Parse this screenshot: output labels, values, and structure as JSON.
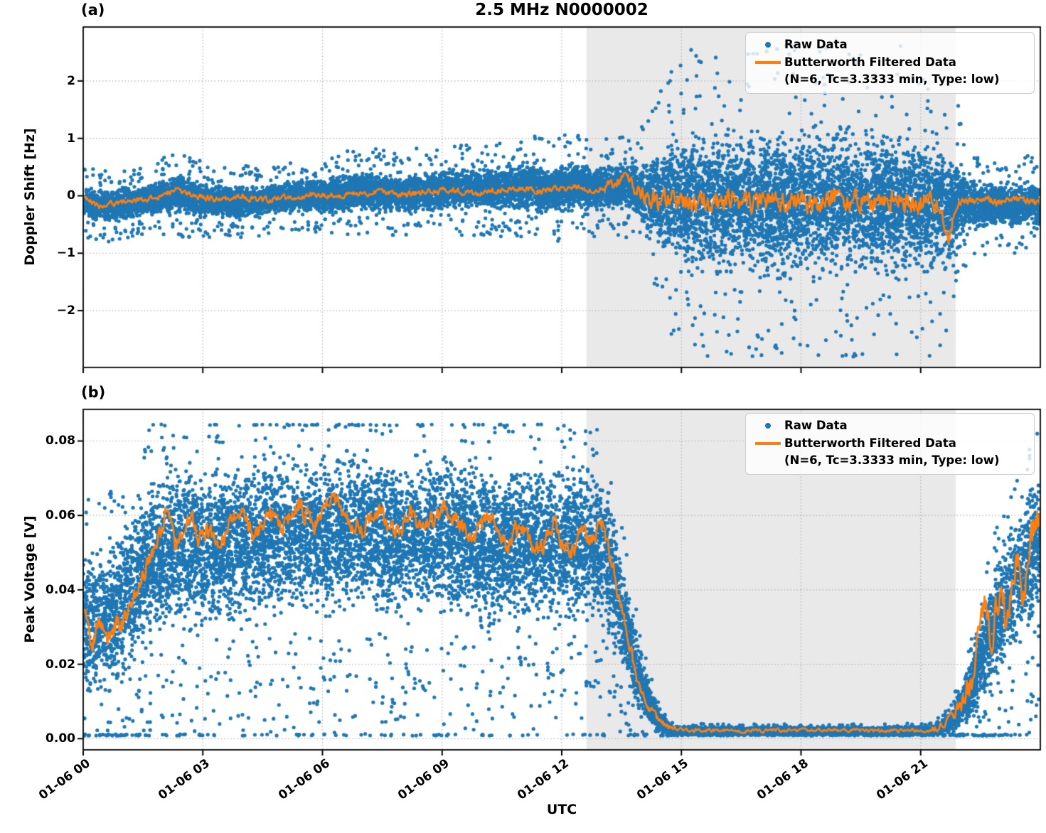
{
  "figure": {
    "title": "2.5 MHz N0000002",
    "xlabel": "UTC",
    "colors": {
      "raw": "#1f77b4",
      "filtered": "#ff7f0e",
      "night_shade": "#e9e9e9",
      "grid": "#b0b0b0",
      "spine": "#000000"
    },
    "legend": {
      "raw_label": "Raw Data",
      "filtered_label": "Butterworth Filtered Data",
      "filtered_sublabel": "(N=6, Tc=3.3333 min, Type: low)"
    }
  },
  "chart_data": [
    {
      "id": "a",
      "type": "scatter",
      "panel_label": "(a)",
      "ylabel": "Doppler Shift [Hz]",
      "ylim": [
        -2.99,
        2.94
      ],
      "ytick_values": [
        2,
        1,
        0,
        -1,
        -2
      ],
      "ytick_labels": [
        "2",
        "1",
        "0",
        "−1",
        "−2"
      ],
      "x_hours_range": [
        0,
        24
      ],
      "xtick_hours": [
        0,
        3,
        6,
        9,
        12,
        15,
        18,
        21
      ],
      "night_span_hours": [
        12.62,
        21.88
      ],
      "legend_entries": [
        "Raw Data",
        "Butterworth Filtered Data (N=6, Tc=3.3333 min, Type: low)"
      ],
      "raw_envelope": [
        [
          0,
          -0.12,
          0.32
        ],
        [
          0.5,
          -0.18,
          0.35
        ],
        [
          1,
          -0.15,
          0.33
        ],
        [
          1.5,
          -0.1,
          0.32
        ],
        [
          2,
          -0.02,
          0.38
        ],
        [
          2.4,
          0.03,
          0.42
        ],
        [
          2.8,
          -0.05,
          0.38
        ],
        [
          3.2,
          -0.1,
          0.35
        ],
        [
          3.6,
          -0.1,
          0.34
        ],
        [
          4,
          -0.1,
          0.35
        ],
        [
          4.4,
          -0.12,
          0.33
        ],
        [
          4.8,
          -0.05,
          0.3
        ],
        [
          5.2,
          -0.02,
          0.33
        ],
        [
          5.6,
          0,
          0.35
        ],
        [
          6,
          0,
          0.36
        ],
        [
          6.4,
          0.02,
          0.38
        ],
        [
          6.8,
          0.08,
          0.4
        ],
        [
          7.2,
          0.1,
          0.42
        ],
        [
          7.6,
          0.05,
          0.4
        ],
        [
          8,
          0.02,
          0.38
        ],
        [
          8.4,
          0.06,
          0.42
        ],
        [
          8.8,
          0.1,
          0.4
        ],
        [
          9.2,
          0.12,
          0.42
        ],
        [
          9.6,
          0.1,
          0.44
        ],
        [
          10,
          0.1,
          0.42
        ],
        [
          10.4,
          0.12,
          0.46
        ],
        [
          10.8,
          0.15,
          0.48
        ],
        [
          11.2,
          0.18,
          0.5
        ],
        [
          11.6,
          0.12,
          0.48
        ],
        [
          12,
          0.15,
          0.52
        ],
        [
          12.4,
          0.18,
          0.48
        ],
        [
          12.8,
          0.12,
          0.45
        ],
        [
          13.2,
          0.15,
          0.48
        ],
        [
          13.6,
          0.2,
          0.52
        ],
        [
          13.9,
          0.1,
          0.6
        ],
        [
          14.2,
          -0.05,
          0.85
        ],
        [
          14.6,
          -0.1,
          1.15
        ],
        [
          15,
          -0.12,
          1.4
        ],
        [
          15.5,
          -0.12,
          1.5
        ],
        [
          16,
          -0.15,
          1.55
        ],
        [
          16.5,
          -0.1,
          1.5
        ],
        [
          17,
          -0.15,
          1.55
        ],
        [
          17.5,
          -0.12,
          1.5
        ],
        [
          18,
          -0.12,
          1.55
        ],
        [
          18.5,
          -0.15,
          1.5
        ],
        [
          19,
          -0.12,
          1.55
        ],
        [
          19.5,
          -0.15,
          1.5
        ],
        [
          20,
          -0.12,
          1.5
        ],
        [
          20.5,
          -0.15,
          1.55
        ],
        [
          21,
          -0.12,
          1.5
        ],
        [
          21.4,
          -0.15,
          1.45
        ],
        [
          21.8,
          -0.25,
          1.2
        ],
        [
          22.05,
          -0.1,
          0.75
        ],
        [
          22.3,
          -0.15,
          0.55
        ],
        [
          22.6,
          -0.2,
          0.5
        ],
        [
          23,
          -0.12,
          0.42
        ],
        [
          23.4,
          -0.18,
          0.45
        ],
        [
          23.7,
          -0.15,
          0.48
        ],
        [
          24,
          -0.25,
          0.5
        ]
      ],
      "filtered_points": [
        [
          0,
          -0.05
        ],
        [
          0.4,
          -0.18
        ],
        [
          0.8,
          -0.12
        ],
        [
          1.2,
          -0.08
        ],
        [
          1.6,
          -0.06
        ],
        [
          2,
          0
        ],
        [
          2.3,
          0.1
        ],
        [
          2.7,
          0.03
        ],
        [
          3,
          -0.03
        ],
        [
          3.5,
          -0.06
        ],
        [
          4,
          -0.03
        ],
        [
          4.5,
          -0.08
        ],
        [
          5,
          -0.03
        ],
        [
          5.5,
          0
        ],
        [
          6,
          0.02
        ],
        [
          6.5,
          0
        ],
        [
          7,
          0.04
        ],
        [
          7.5,
          0.09
        ],
        [
          8,
          0.02
        ],
        [
          8.5,
          0.05
        ],
        [
          9,
          0.1
        ],
        [
          9.5,
          0.07
        ],
        [
          10,
          0.05
        ],
        [
          10.5,
          0.1
        ],
        [
          11,
          0.12
        ],
        [
          11.5,
          0.09
        ],
        [
          12,
          0.12
        ],
        [
          12.4,
          0.16
        ],
        [
          12.7,
          0.1
        ],
        [
          13,
          0.13
        ],
        [
          13.3,
          0.22
        ],
        [
          13.55,
          0.35
        ],
        [
          13.75,
          0.18
        ],
        [
          14,
          0.02
        ],
        [
          14.4,
          -0.08
        ],
        [
          14.8,
          -0.02
        ],
        [
          15.2,
          -0.1
        ],
        [
          15.6,
          -0.05
        ],
        [
          16,
          -0.12
        ],
        [
          16.4,
          -0.05
        ],
        [
          16.8,
          -0.15
        ],
        [
          17.2,
          -0.05
        ],
        [
          17.6,
          -0.12
        ],
        [
          18,
          -0.06
        ],
        [
          18.4,
          -0.14
        ],
        [
          18.8,
          -0.05
        ],
        [
          19.2,
          -0.12
        ],
        [
          19.6,
          -0.06
        ],
        [
          20,
          -0.12
        ],
        [
          20.4,
          -0.05
        ],
        [
          20.8,
          -0.14
        ],
        [
          21.2,
          -0.1
        ],
        [
          21.5,
          -0.25
        ],
        [
          21.7,
          -0.75
        ],
        [
          21.85,
          -0.3
        ],
        [
          22,
          -0.05
        ],
        [
          22.3,
          -0.1
        ],
        [
          22.7,
          -0.07
        ],
        [
          23,
          -0.12
        ],
        [
          23.4,
          -0.08
        ],
        [
          23.7,
          -0.12
        ],
        [
          24,
          -0.12
        ]
      ],
      "filtered_noise_amp": [
        [
          0,
          0.055
        ],
        [
          12.8,
          0.055
        ],
        [
          13.3,
          0.09
        ],
        [
          13.8,
          0.12
        ],
        [
          14.3,
          0.2
        ],
        [
          21.5,
          0.2
        ],
        [
          21.9,
          0.14
        ],
        [
          22.2,
          0.07
        ],
        [
          24,
          0.07
        ]
      ]
    },
    {
      "id": "b",
      "type": "scatter",
      "panel_label": "(b)",
      "ylabel": "Peak Voltage [V]",
      "ylim": [
        -0.003,
        0.0885
      ],
      "ytick_values": [
        0.08,
        0.06,
        0.04,
        0.02,
        0.0
      ],
      "ytick_labels": [
        "0.08",
        "0.06",
        "0.04",
        "0.02",
        "0.00"
      ],
      "x_hours_range": [
        0,
        24
      ],
      "xtick_hours": [
        0,
        3,
        6,
        9,
        12,
        15,
        18,
        21
      ],
      "xtick_labels": [
        "01-06 00",
        "01-06 03",
        "01-06 06",
        "01-06 09",
        "01-06 12",
        "01-06 15",
        "01-06 18",
        "01-06 21"
      ],
      "night_span_hours": [
        12.62,
        21.88
      ],
      "legend_entries": [
        "Raw Data",
        "Butterworth Filtered Data (N=6, Tc=3.3333 min, Type: low)"
      ],
      "raw_envelope": [
        [
          0,
          0.03,
          0.024
        ],
        [
          0.5,
          0.032,
          0.025
        ],
        [
          1,
          0.036,
          0.026
        ],
        [
          1.5,
          0.045,
          0.027
        ],
        [
          2,
          0.05,
          0.027
        ],
        [
          2.5,
          0.052,
          0.026
        ],
        [
          3,
          0.05,
          0.026
        ],
        [
          4,
          0.053,
          0.026
        ],
        [
          5,
          0.055,
          0.026
        ],
        [
          6,
          0.055,
          0.026
        ],
        [
          7,
          0.056,
          0.026
        ],
        [
          8,
          0.054,
          0.026
        ],
        [
          9,
          0.055,
          0.026
        ],
        [
          10,
          0.052,
          0.026
        ],
        [
          11,
          0.052,
          0.026
        ],
        [
          12,
          0.052,
          0.025
        ],
        [
          12.7,
          0.053,
          0.025
        ],
        [
          13.1,
          0.05,
          0.024
        ],
        [
          13.5,
          0.034,
          0.018
        ],
        [
          14,
          0.014,
          0.01
        ],
        [
          14.4,
          0.005,
          0.004
        ],
        [
          14.8,
          0.0022,
          0.0014
        ],
        [
          16,
          0.0021,
          0.0013
        ],
        [
          18,
          0.0021,
          0.0013
        ],
        [
          20,
          0.0021,
          0.0013
        ],
        [
          21.3,
          0.0022,
          0.0015
        ],
        [
          21.7,
          0.004,
          0.003
        ],
        [
          22,
          0.008,
          0.006
        ],
        [
          22.3,
          0.014,
          0.01
        ],
        [
          22.6,
          0.024,
          0.016
        ],
        [
          23,
          0.034,
          0.02
        ],
        [
          23.4,
          0.042,
          0.022
        ],
        [
          23.7,
          0.048,
          0.022
        ],
        [
          24,
          0.054,
          0.022
        ]
      ],
      "filtered_points": [
        [
          0,
          0.033
        ],
        [
          0.2,
          0.025
        ],
        [
          0.4,
          0.03
        ],
        [
          0.6,
          0.027
        ],
        [
          0.8,
          0.03
        ],
        [
          1,
          0.031
        ],
        [
          1.2,
          0.036
        ],
        [
          1.4,
          0.042
        ],
        [
          1.6,
          0.047
        ],
        [
          1.8,
          0.05
        ],
        [
          2,
          0.056
        ],
        [
          2.1,
          0.063
        ],
        [
          2.3,
          0.052
        ],
        [
          2.5,
          0.056
        ],
        [
          2.7,
          0.06
        ],
        [
          2.9,
          0.052
        ],
        [
          3.1,
          0.057
        ],
        [
          3.4,
          0.052
        ],
        [
          3.7,
          0.058
        ],
        [
          4,
          0.06
        ],
        [
          4.3,
          0.054
        ],
        [
          4.6,
          0.062
        ],
        [
          5,
          0.057
        ],
        [
          5.4,
          0.063
        ],
        [
          5.8,
          0.058
        ],
        [
          6.2,
          0.065
        ],
        [
          6.6,
          0.06
        ],
        [
          7,
          0.056
        ],
        [
          7.4,
          0.062
        ],
        [
          7.8,
          0.054
        ],
        [
          8.2,
          0.06
        ],
        [
          8.6,
          0.056
        ],
        [
          9,
          0.062
        ],
        [
          9.4,
          0.058
        ],
        [
          9.8,
          0.054
        ],
        [
          10.2,
          0.06
        ],
        [
          10.6,
          0.052
        ],
        [
          11,
          0.057
        ],
        [
          11.4,
          0.051
        ],
        [
          11.8,
          0.057
        ],
        [
          12.2,
          0.05
        ],
        [
          12.5,
          0.055
        ],
        [
          12.8,
          0.054
        ],
        [
          13.05,
          0.057
        ],
        [
          13.2,
          0.05
        ],
        [
          13.4,
          0.04
        ],
        [
          13.6,
          0.03
        ],
        [
          13.8,
          0.02
        ],
        [
          14,
          0.012
        ],
        [
          14.2,
          0.008
        ],
        [
          14.5,
          0.004
        ],
        [
          14.8,
          0.0028
        ],
        [
          15.2,
          0.0023
        ],
        [
          16,
          0.0022
        ],
        [
          17,
          0.0022
        ],
        [
          18,
          0.0022
        ],
        [
          19,
          0.0022
        ],
        [
          20,
          0.0022
        ],
        [
          21,
          0.0023
        ],
        [
          21.4,
          0.003
        ],
        [
          21.7,
          0.005
        ],
        [
          22,
          0.008
        ],
        [
          22.2,
          0.013
        ],
        [
          22.4,
          0.022
        ],
        [
          22.6,
          0.035
        ],
        [
          22.8,
          0.026
        ],
        [
          23,
          0.042
        ],
        [
          23.2,
          0.031
        ],
        [
          23.4,
          0.05
        ],
        [
          23.6,
          0.038
        ],
        [
          23.8,
          0.055
        ],
        [
          24,
          0.058
        ]
      ],
      "filtered_noise_amp": [
        [
          0,
          0.003
        ],
        [
          13,
          0.003
        ],
        [
          14,
          0.0015
        ],
        [
          15,
          0.0005
        ],
        [
          21,
          0.0005
        ],
        [
          21.8,
          0.0015
        ],
        [
          22.3,
          0.005
        ],
        [
          24,
          0.006
        ]
      ]
    }
  ]
}
